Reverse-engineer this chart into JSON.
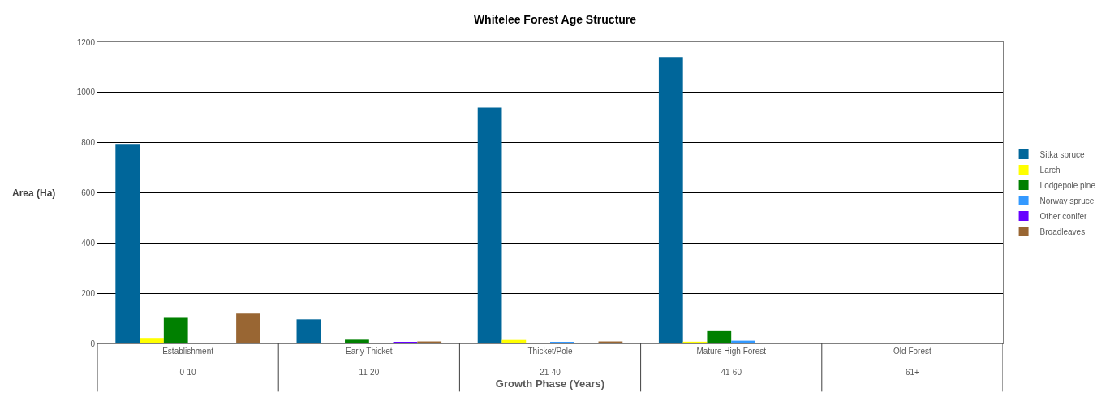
{
  "chart_data": {
    "type": "bar",
    "title": "Whitelee Forest Age Structure",
    "xlabel": "Growth Phase (Years)",
    "ylabel": "Area (Ha)",
    "categories": [
      "Establishment\n0-10",
      "Early Thicket\n11-20",
      "Thicket/Pole\n21-40",
      "Mature High Forest\n41-60",
      "Old Forest\n61+"
    ],
    "series": [
      {
        "name": "Sitka spruce",
        "color": "#00669a",
        "values": [
          795,
          96,
          940,
          1141,
          0
        ]
      },
      {
        "name": "Larch",
        "color": "#ffff00",
        "values": [
          22,
          0,
          14,
          7,
          0
        ]
      },
      {
        "name": "Lodgepole pine",
        "color": "#008000",
        "values": [
          102,
          15,
          0,
          49,
          0
        ]
      },
      {
        "name": "Norway spruce",
        "color": "#3399ff",
        "values": [
          0,
          0,
          6,
          11,
          0
        ]
      },
      {
        "name": "Other conifer",
        "color": "#6600ff",
        "values": [
          0,
          5,
          0,
          0,
          0
        ]
      },
      {
        "name": "Broadleaves",
        "color": "#996633",
        "values": [
          119,
          8,
          8,
          0,
          0
        ]
      }
    ],
    "ylim": [
      0,
      1200
    ],
    "yticks": [
      0,
      200,
      400,
      600,
      800,
      1000,
      1200
    ],
    "grid": "y",
    "legend": "right"
  }
}
